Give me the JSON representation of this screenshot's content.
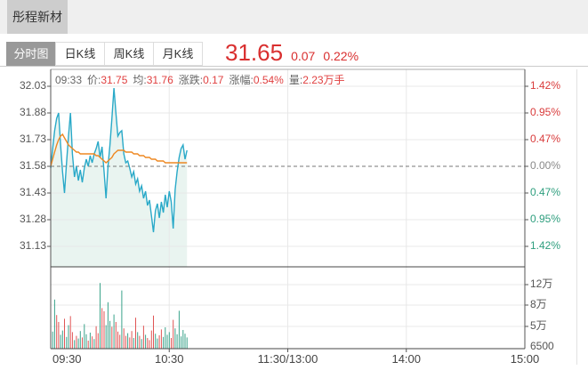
{
  "header": {
    "stock_name": "彤程新材"
  },
  "tabs": [
    {
      "label": "分时图",
      "active": true
    },
    {
      "label": "日K线",
      "active": false
    },
    {
      "label": "周K线",
      "active": false
    },
    {
      "label": "月K线",
      "active": false
    }
  ],
  "quote": {
    "price": "31.65",
    "change": "0.07",
    "change_pct": "0.22%"
  },
  "info_bar": [
    {
      "text": "09:33",
      "type": "label"
    },
    {
      "text": "价:",
      "type": "label"
    },
    {
      "text": "31.75",
      "type": "value"
    },
    {
      "text": "均:",
      "type": "label"
    },
    {
      "text": "31.76",
      "type": "value"
    },
    {
      "text": "涨跌:",
      "type": "label"
    },
    {
      "text": "0.17",
      "type": "value"
    },
    {
      "text": "涨幅:",
      "type": "label"
    },
    {
      "text": "0.54%",
      "type": "value"
    },
    {
      "text": "量:",
      "type": "label"
    },
    {
      "text": "2.23万手",
      "type": "value"
    }
  ],
  "colors": {
    "up": "#d92f2f",
    "down": "#2e9e7e",
    "flat": "#8a8a8a",
    "price_line": "#29a9c8",
    "avg_line": "#ee8822",
    "area_fill": "#e9f4f0",
    "vol_up": "#e05555",
    "vol_down": "#3aa38a",
    "grid": "#e8e8e8",
    "frame": "#555555",
    "tab_active_bg": "#999999"
  },
  "chart_data": {
    "type": "line",
    "title": "分时图 intraday price/volume",
    "x_axis_labels": [
      "09:30",
      "10:30",
      "11:30/13:00",
      "14:00",
      "15:00"
    ],
    "left_price_ticks": [
      "32.03",
      "31.88",
      "31.73",
      "31.58",
      "31.43",
      "31.28",
      "31.13"
    ],
    "right_pct_ticks": [
      {
        "label": "1.42%",
        "dir": "up"
      },
      {
        "label": "0.95%",
        "dir": "up"
      },
      {
        "label": "0.47%",
        "dir": "up"
      },
      {
        "label": "0.00%",
        "dir": "flat"
      },
      {
        "label": "0.47%",
        "dir": "down"
      },
      {
        "label": "0.95%",
        "dir": "down"
      },
      {
        "label": "1.42%",
        "dir": "down"
      }
    ],
    "volume_ticks": [
      "12万",
      "8万",
      "5万",
      "6500"
    ],
    "baseline_price": 31.58,
    "tick_step": 0.15,
    "price_range": [
      31.13,
      32.03
    ],
    "session_minutes": 240,
    "grid": true,
    "series": [
      {
        "name": "price",
        "values": [
          31.57,
          31.68,
          31.78,
          31.85,
          31.88,
          31.7,
          31.55,
          31.43,
          31.6,
          31.75,
          31.88,
          31.65,
          31.52,
          31.58,
          31.5,
          31.56,
          31.49,
          31.57,
          31.62,
          31.58,
          31.64,
          31.6,
          31.65,
          31.68,
          31.72,
          31.63,
          31.69,
          31.55,
          31.4,
          31.58,
          31.7,
          31.85,
          32.02,
          31.88,
          31.75,
          31.77,
          31.78,
          31.65,
          31.6,
          31.61,
          31.57,
          31.52,
          31.55,
          31.48,
          31.51,
          31.44,
          31.47,
          31.4,
          31.44,
          31.36,
          31.39,
          31.3,
          31.21,
          31.33,
          31.37,
          31.29,
          31.38,
          31.32,
          31.42,
          31.35,
          31.44,
          31.38,
          31.23,
          31.45,
          31.55,
          31.63,
          31.68,
          31.7,
          31.62,
          31.67
        ]
      },
      {
        "name": "average",
        "values": [
          31.58,
          31.62,
          31.66,
          31.7,
          31.73,
          31.75,
          31.76,
          31.74,
          31.72,
          31.7,
          31.69,
          31.68,
          31.67,
          31.66,
          31.66,
          31.65,
          31.65,
          31.65,
          31.65,
          31.65,
          31.65,
          31.65,
          31.65,
          31.64,
          31.64,
          31.63,
          31.62,
          31.61,
          31.6,
          31.61,
          31.62,
          31.63,
          31.65,
          31.66,
          31.67,
          31.67,
          31.67,
          31.67,
          31.66,
          31.66,
          31.66,
          31.66,
          31.65,
          31.65,
          31.65,
          31.64,
          31.64,
          31.64,
          31.63,
          31.63,
          31.63,
          31.62,
          31.62,
          31.62,
          31.61,
          31.61,
          31.61,
          31.61,
          31.6,
          31.6,
          31.6,
          31.6,
          31.6,
          31.6,
          31.6,
          31.6,
          31.6,
          31.6,
          31.6,
          31.6
        ]
      }
    ],
    "volume": {
      "unit": "万手",
      "values": [
        1.8,
        3.2,
        9.2,
        6.3,
        5.0,
        2.6,
        3.4,
        5.6,
        2.2,
        4.4,
        6.1,
        3.1,
        1.6,
        2.4,
        1.9,
        3.3,
        2.1,
        4.6,
        2.7,
        1.5,
        3.0,
        2.3,
        1.8,
        4.2,
        2.9,
        12.3,
        7.6,
        7.0,
        4.4,
        8.7,
        5.2,
        4.1,
        6.4,
        5.0,
        3.2,
        2.6,
        10.9,
        3.8,
        2.4,
        2.9,
        2.1,
        3.3,
        2.0,
        5.8,
        3.1,
        2.4,
        1.8,
        4.3,
        2.6,
        2.0,
        1.6,
        3.4,
        6.2,
        2.8,
        1.9,
        2.5,
        3.6,
        2.2,
        4.0,
        2.6,
        3.1,
        2.0,
        5.4,
        3.8,
        2.7,
        7.1,
        2.3,
        3.5,
        2.8,
        2.1
      ],
      "colors": [
        "g",
        "g",
        "g",
        "r",
        "r",
        "g",
        "g",
        "r",
        "g",
        "g",
        "r",
        "r",
        "g",
        "r",
        "g",
        "g",
        "r",
        "g",
        "g",
        "r",
        "g",
        "r",
        "g",
        "r",
        "r",
        "g",
        "r",
        "r",
        "g",
        "g",
        "g",
        "r",
        "g",
        "r",
        "r",
        "r",
        "g",
        "r",
        "r",
        "g",
        "r",
        "r",
        "g",
        "r",
        "g",
        "r",
        "g",
        "r",
        "g",
        "r",
        "r",
        "r",
        "r",
        "g",
        "g",
        "r",
        "r",
        "g",
        "g",
        "g",
        "g",
        "r",
        "r",
        "g",
        "g",
        "g",
        "g",
        "g",
        "g",
        "g"
      ]
    }
  }
}
